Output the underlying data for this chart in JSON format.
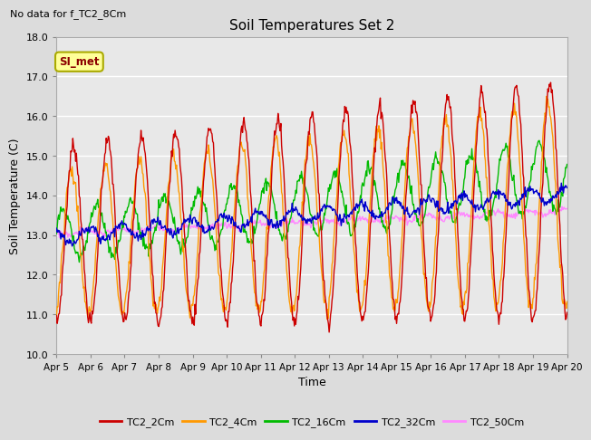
{
  "title": "Soil Temperatures Set 2",
  "xlabel": "Time",
  "ylabel": "Soil Temperature (C)",
  "subtitle": "No data for f_TC2_8Cm",
  "annotation": "SI_met",
  "ylim": [
    10.0,
    18.0
  ],
  "yticks": [
    10.0,
    11.0,
    12.0,
    13.0,
    14.0,
    15.0,
    16.0,
    17.0,
    18.0
  ],
  "xtick_labels": [
    "Apr 5",
    "Apr 6",
    "Apr 7",
    "Apr 8",
    "Apr 9",
    "Apr 10",
    "Apr 11",
    "Apr 12",
    "Apr 13",
    "Apr 14",
    "Apr 15",
    "Apr 16",
    "Apr 17",
    "Apr 18",
    "Apr 19",
    "Apr 20"
  ],
  "fig_bg": "#dcdcdc",
  "plot_bg": "#e8e8e8",
  "grid_color": "#ffffff",
  "series": {
    "TC2_2Cm": {
      "color": "#cc0000",
      "lw": 1.0
    },
    "TC2_4Cm": {
      "color": "#ff9900",
      "lw": 1.0
    },
    "TC2_16Cm": {
      "color": "#00bb00",
      "lw": 1.0
    },
    "TC2_32Cm": {
      "color": "#0000cc",
      "lw": 1.0
    },
    "TC2_50Cm": {
      "color": "#ff88ff",
      "lw": 1.0
    }
  },
  "legend_colors": {
    "TC2_2Cm": "#cc0000",
    "TC2_4Cm": "#ff9900",
    "TC2_16Cm": "#00bb00",
    "TC2_32Cm": "#0000cc",
    "TC2_50Cm": "#ff88ff"
  }
}
